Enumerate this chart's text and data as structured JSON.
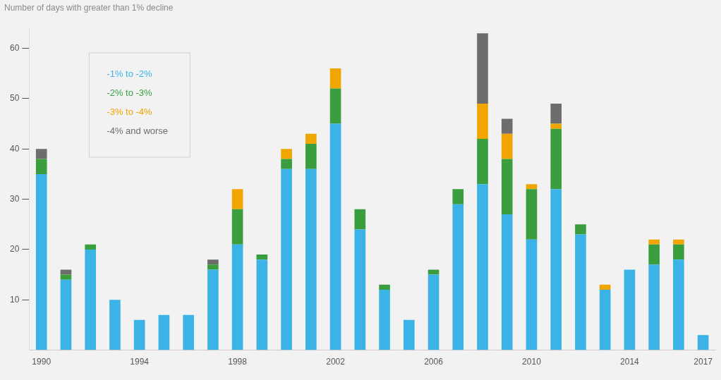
{
  "chart_data": {
    "type": "bar",
    "stacked": true,
    "title": "Number of days with greater than 1% decline",
    "categories": [
      "1990",
      null,
      null,
      null,
      "1994",
      null,
      null,
      null,
      "1998",
      null,
      null,
      null,
      "2002",
      null,
      null,
      null,
      "2006",
      null,
      null,
      null,
      "2010",
      null,
      null,
      null,
      "2014",
      null,
      null,
      "2017"
    ],
    "series": [
      {
        "name": "-1% to -2%",
        "color": "#3bb3e6",
        "values": [
          35,
          14,
          20,
          10,
          6,
          7,
          7,
          16,
          21,
          18,
          36,
          36,
          45,
          24,
          12,
          6,
          15,
          29,
          33,
          27,
          22,
          32,
          23,
          12,
          16,
          17,
          18,
          3
        ]
      },
      {
        "name": "-2% to -3%",
        "color": "#3a9e3f",
        "values": [
          3,
          1,
          1,
          null,
          null,
          null,
          null,
          1,
          7,
          1,
          2,
          5,
          7,
          4,
          1,
          null,
          1,
          3,
          9,
          11,
          10,
          12,
          2,
          null,
          null,
          4,
          3,
          null
        ]
      },
      {
        "name": "-3% to -4%",
        "color": "#f0a500",
        "values": [
          null,
          null,
          null,
          null,
          null,
          null,
          null,
          null,
          4,
          null,
          2,
          2,
          4,
          null,
          null,
          null,
          null,
          null,
          7,
          5,
          1,
          1,
          null,
          1,
          null,
          1,
          1,
          null
        ]
      },
      {
        "name": "-4% and worse",
        "color": "#6d6d6d",
        "values": [
          2,
          1,
          null,
          null,
          null,
          null,
          null,
          1,
          null,
          null,
          null,
          null,
          null,
          null,
          null,
          null,
          null,
          null,
          14,
          3,
          null,
          4,
          null,
          null,
          null,
          null,
          null,
          null
        ]
      }
    ],
    "ylim": [
      0,
      64
    ],
    "yticks": [
      10,
      20,
      30,
      40,
      50,
      60
    ],
    "legend": "top left",
    "grid": false
  }
}
